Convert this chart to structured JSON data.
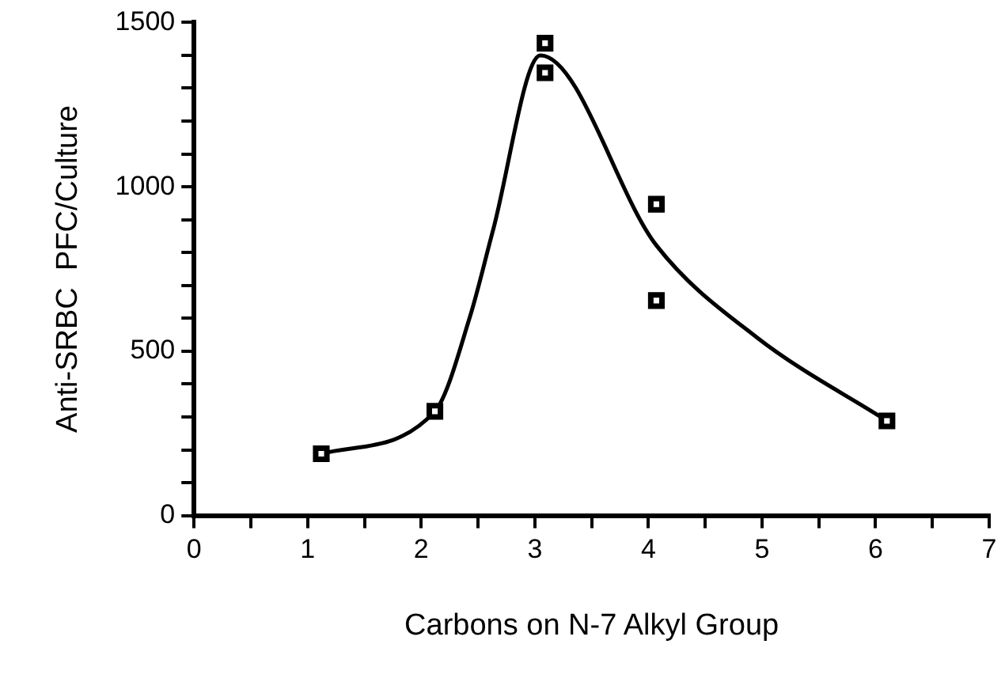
{
  "chart_data": {
    "type": "scatter",
    "xlabel": "Carbons on N-7 Alkyl Group",
    "ylabel": "Anti-SRBC  PFC/Culture",
    "xlim": [
      0,
      7
    ],
    "ylim": [
      0,
      1500
    ],
    "xticks": [
      0,
      {
        "value": 0.5,
        "label": null
      },
      1,
      {
        "value": 1.5,
        "label": null
      },
      2,
      {
        "value": 2.5,
        "label": null
      },
      3,
      {
        "value": 3.5,
        "label": null
      },
      4,
      {
        "value": 4.5,
        "label": null
      },
      5,
      {
        "value": 5.5,
        "label": null
      },
      6,
      {
        "value": 6.5,
        "label": null
      },
      7
    ],
    "yticks": [
      0,
      {
        "value": 100,
        "label": null
      },
      {
        "value": 200,
        "label": null
      },
      {
        "value": 300,
        "label": null
      },
      {
        "value": 400,
        "label": null
      },
      500,
      {
        "value": 600,
        "label": null
      },
      {
        "value": 700,
        "label": null
      },
      {
        "value": 800,
        "label": null
      },
      {
        "value": 900,
        "label": null
      },
      1000,
      {
        "value": 1100,
        "label": null
      },
      {
        "value": 1200,
        "label": null
      },
      {
        "value": 1300,
        "label": null
      },
      {
        "value": 1400,
        "label": null
      },
      1500
    ],
    "grid": false,
    "legend": false,
    "marker": "square",
    "series": [
      {
        "color": "#000000",
        "x": [
          1.12,
          2.12,
          3.09,
          3.09,
          4.07,
          4.07,
          6.1
        ],
        "values": [
          188,
          317,
          1437,
          1347,
          947,
          654,
          288
        ]
      },
      {
        "type": "line",
        "color": "#000000",
        "marker": "none",
        "line_style": "solid",
        "x": [
          1.12,
          2.12,
          2.43,
          2.63,
          3.05,
          4.07,
          4.95,
          6.1
        ],
        "values": [
          188,
          317,
          606,
          865,
          1400,
          822,
          543,
          288
        ]
      }
    ]
  }
}
